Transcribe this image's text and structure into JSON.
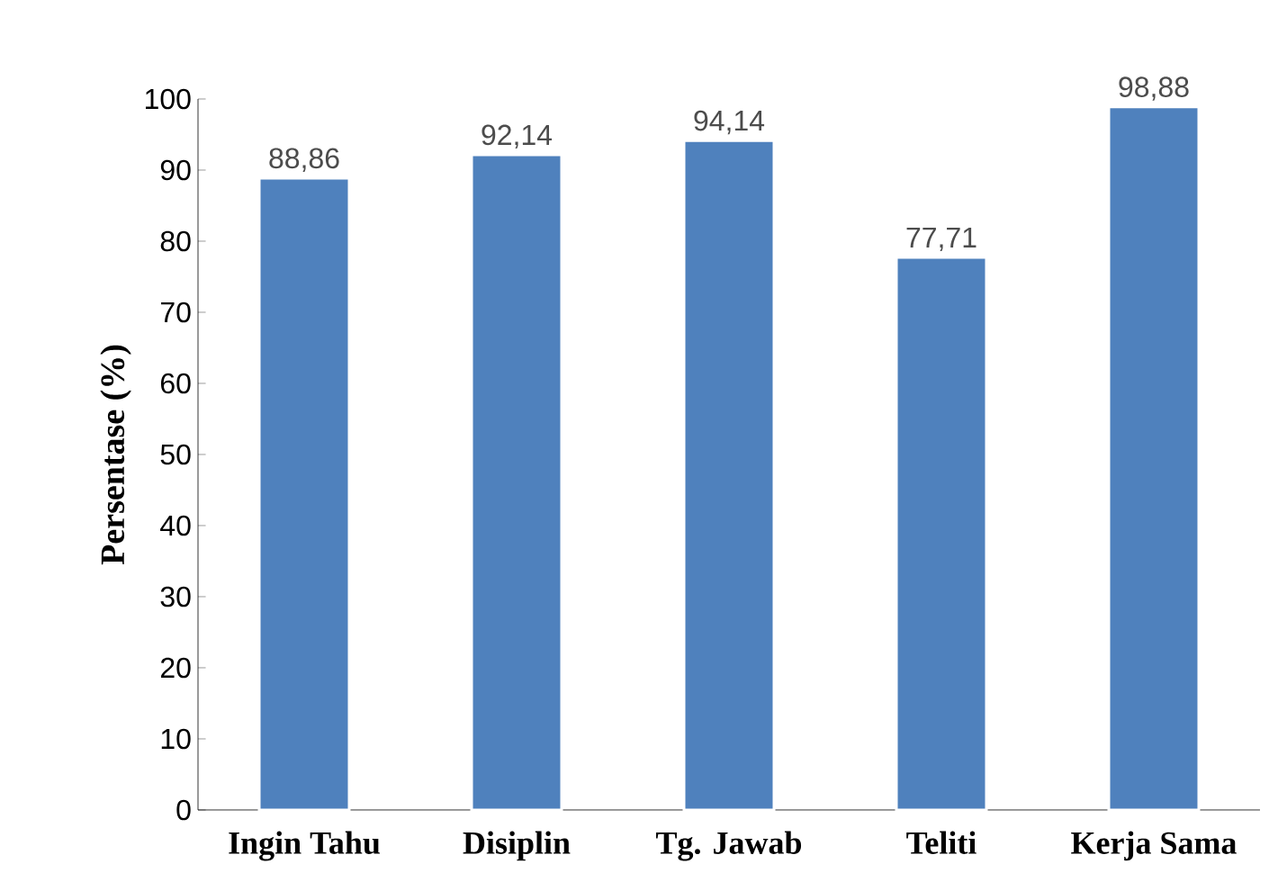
{
  "chart_data": {
    "type": "bar",
    "ylabel": "Persentase (%)",
    "categories": [
      "Ingin Tahu",
      "Disiplin",
      "Tg. Jawab",
      "Teliti",
      "Kerja Sama"
    ],
    "values": [
      88.86,
      92.14,
      94.14,
      77.71,
      98.88
    ],
    "value_labels": [
      "88,86",
      "92,14",
      "94,14",
      "77,71",
      "98,88"
    ],
    "color": "#4f81bd",
    "ylim": [
      0,
      100
    ],
    "yticks": [
      0,
      10,
      20,
      30,
      40,
      50,
      60,
      70,
      80,
      90,
      100
    ]
  }
}
